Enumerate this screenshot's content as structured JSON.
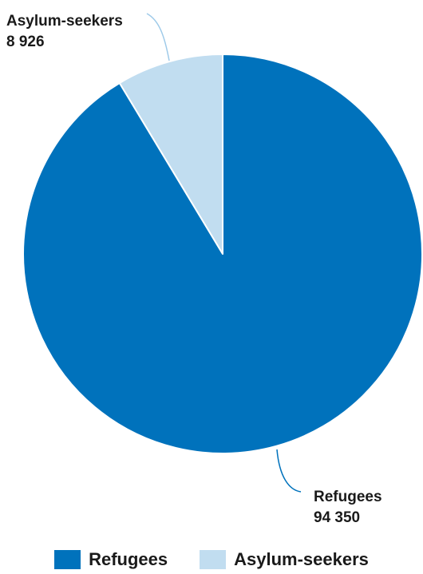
{
  "chart_data": {
    "type": "pie",
    "title": "",
    "start_angle_deg": 0,
    "direction": "clockwise",
    "slices": [
      {
        "name": "Refugees",
        "value": 94350,
        "value_label": "94 350",
        "color": "#0072bc"
      },
      {
        "name": "Asylum-seekers",
        "value": 8926,
        "value_label": "8 926",
        "color": "#c1ddf0"
      }
    ],
    "legend": {
      "position": "bottom",
      "items": [
        {
          "label": "Refugees",
          "color": "#0072bc"
        },
        {
          "label": "Asylum-seekers",
          "color": "#c1ddf0"
        }
      ]
    },
    "leader_line_colors": {
      "Refugees": "#0072bc",
      "Asylum-seekers": "#9ecae9"
    }
  }
}
